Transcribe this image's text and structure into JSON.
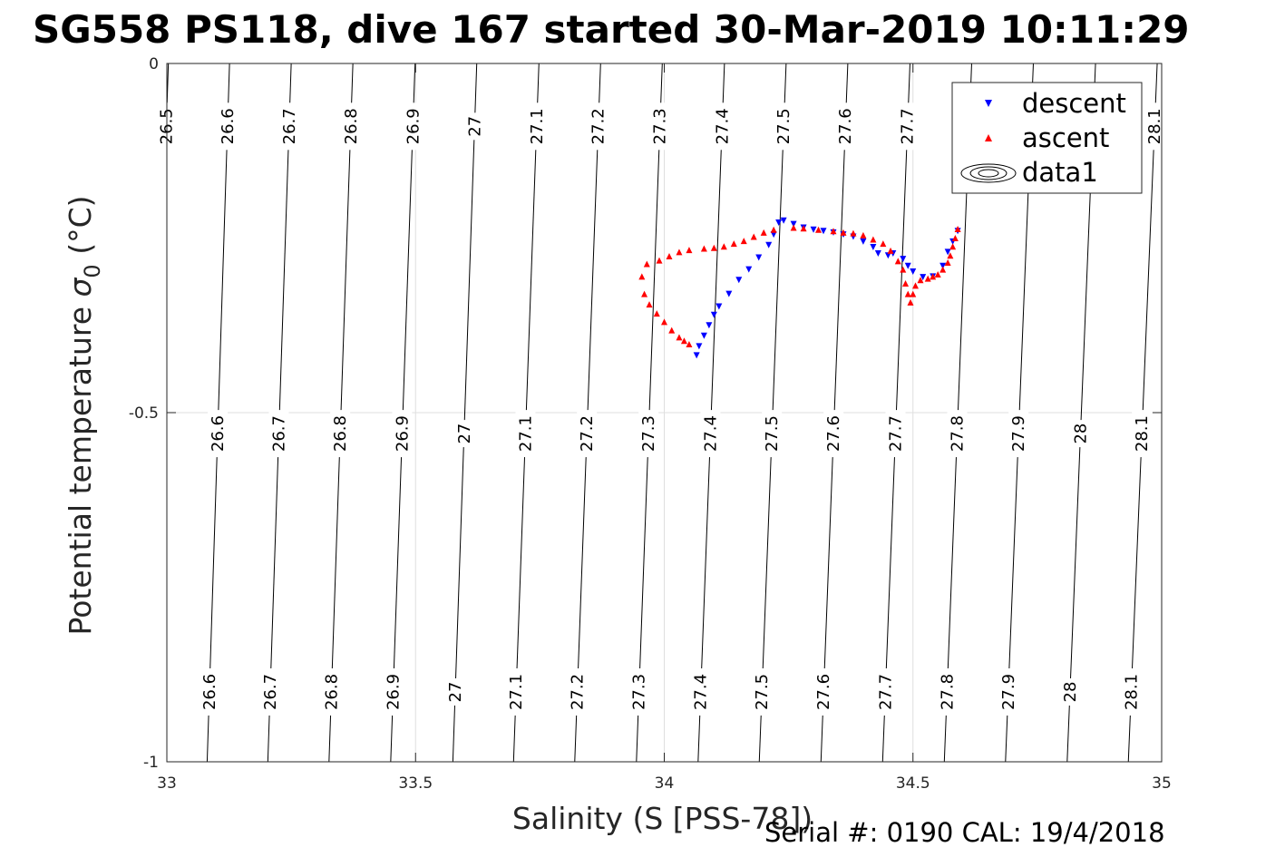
{
  "chart_data": {
    "type": "scatter",
    "title": "SG558 PS118, dive 167 started 30-Mar-2019 10:11:29",
    "xlabel": "Salinity (S [PSS-78])",
    "ylabel_main": "Potential temperature ",
    "ylabel_sigma": "σ",
    "ylabel_sub": "0",
    "ylabel_unit": " (°C)",
    "footer": "Serial #: 0190  CAL: 19/4/2018",
    "xlim": [
      33,
      35
    ],
    "ylim": [
      -1,
      0
    ],
    "x_ticks": [
      {
        "value": 33,
        "label": "33"
      },
      {
        "value": 33.5,
        "label": "33.5"
      },
      {
        "value": 34,
        "label": "34"
      },
      {
        "value": 34.5,
        "label": "34.5"
      },
      {
        "value": 35,
        "label": "35"
      }
    ],
    "y_ticks": [
      {
        "value": 0,
        "label": "0"
      },
      {
        "value": -0.5,
        "label": "-0.5"
      },
      {
        "value": -1,
        "label": "-1"
      }
    ],
    "grid": true,
    "legend": {
      "placement": "top-right",
      "entries": [
        {
          "label": "descent",
          "marker": "triangle-down",
          "color": "#0000ff"
        },
        {
          "label": "ascent",
          "marker": "triangle-up",
          "color": "#ff0000"
        },
        {
          "label": "data1",
          "marker": "contour",
          "color": "#000000"
        }
      ]
    },
    "isopycnals": [
      {
        "sigma": 26.5,
        "s_top": 33.003,
        "s_bottom": null
      },
      {
        "sigma": 26.6,
        "s_top": 33.126,
        "s_bottom": 33.081
      },
      {
        "sigma": 26.7,
        "s_top": 33.25,
        "s_bottom": 33.203
      },
      {
        "sigma": 26.8,
        "s_top": 33.374,
        "s_bottom": 33.326
      },
      {
        "sigma": 26.9,
        "s_top": 33.499,
        "s_bottom": 33.45
      },
      {
        "sigma": 27.0,
        "s_top": 33.623,
        "s_bottom": 33.575
      },
      {
        "sigma": 27.1,
        "s_top": 33.748,
        "s_bottom": 33.697
      },
      {
        "sigma": 27.2,
        "s_top": 33.872,
        "s_bottom": 33.82
      },
      {
        "sigma": 27.3,
        "s_top": 33.996,
        "s_bottom": 33.944
      },
      {
        "sigma": 27.4,
        "s_top": 34.121,
        "s_bottom": 34.068
      },
      {
        "sigma": 27.5,
        "s_top": 34.245,
        "s_bottom": 34.191
      },
      {
        "sigma": 27.6,
        "s_top": 34.369,
        "s_bottom": 34.315
      },
      {
        "sigma": 27.7,
        "s_top": 34.494,
        "s_bottom": 34.439
      },
      {
        "sigma": 27.8,
        "s_top": 34.618,
        "s_bottom": 34.563
      },
      {
        "sigma": 27.9,
        "s_top": 34.742,
        "s_bottom": 34.686
      },
      {
        "sigma": 28.0,
        "s_top": 34.867,
        "s_bottom": 34.81
      },
      {
        "sigma": 28.1,
        "s_top": 34.991,
        "s_bottom": 34.933
      }
    ],
    "iso_labels": {
      "top_row_t": -0.09,
      "top_row": [
        "26.5",
        "26.6",
        "26.7",
        "26.8",
        "26.9",
        "27",
        "27.1",
        "27.2",
        "27.3",
        "27.4",
        "27.5",
        "27.6",
        "27.7",
        "28.1"
      ],
      "mid_row_t": -0.53,
      "mid_row": [
        "26.6",
        "26.7",
        "26.8",
        "26.9",
        "27",
        "27.1",
        "27.2",
        "27.3",
        "27.4",
        "27.5",
        "27.6",
        "27.7",
        "27.8",
        "27.9",
        "28",
        "28.1"
      ],
      "bottom_row_t": -0.9,
      "bottom_row": [
        "26.6",
        "26.7",
        "26.8",
        "26.9",
        "27",
        "27.1",
        "27.2",
        "27.3",
        "27.4",
        "27.5",
        "27.6",
        "27.7",
        "27.8",
        "27.9",
        "28",
        "28.1"
      ]
    },
    "series": [
      {
        "name": "descent",
        "marker": "triangle-down",
        "color": "#0000ff",
        "points": [
          [
            34.24,
            -0.225
          ],
          [
            34.26,
            -0.23
          ],
          [
            34.28,
            -0.235
          ],
          [
            34.3,
            -0.238
          ],
          [
            34.32,
            -0.24
          ],
          [
            34.34,
            -0.242
          ],
          [
            34.36,
            -0.245
          ],
          [
            34.38,
            -0.248
          ],
          [
            34.4,
            -0.255
          ],
          [
            34.42,
            -0.263
          ],
          [
            34.43,
            -0.272
          ],
          [
            34.45,
            -0.275
          ],
          [
            34.46,
            -0.272
          ],
          [
            34.48,
            -0.28
          ],
          [
            34.49,
            -0.29
          ],
          [
            34.5,
            -0.298
          ],
          [
            34.52,
            -0.306
          ],
          [
            34.54,
            -0.305
          ],
          [
            34.56,
            -0.29
          ],
          [
            34.57,
            -0.27
          ],
          [
            34.58,
            -0.255
          ],
          [
            34.59,
            -0.24
          ],
          [
            34.23,
            -0.228
          ],
          [
            34.22,
            -0.245
          ],
          [
            34.21,
            -0.26
          ],
          [
            34.19,
            -0.278
          ],
          [
            34.17,
            -0.295
          ],
          [
            34.15,
            -0.31
          ],
          [
            34.13,
            -0.33
          ],
          [
            34.11,
            -0.348
          ],
          [
            34.1,
            -0.36
          ],
          [
            34.09,
            -0.375
          ],
          [
            34.08,
            -0.39
          ],
          [
            34.07,
            -0.405
          ],
          [
            34.065,
            -0.418
          ]
        ]
      },
      {
        "name": "ascent",
        "marker": "triangle-up",
        "color": "#ff0000",
        "points": [
          [
            34.59,
            -0.237
          ],
          [
            34.585,
            -0.25
          ],
          [
            34.58,
            -0.262
          ],
          [
            34.575,
            -0.275
          ],
          [
            34.57,
            -0.285
          ],
          [
            34.56,
            -0.295
          ],
          [
            34.55,
            -0.302
          ],
          [
            34.54,
            -0.305
          ],
          [
            34.53,
            -0.308
          ],
          [
            34.515,
            -0.31
          ],
          [
            34.505,
            -0.318
          ],
          [
            34.5,
            -0.33
          ],
          [
            34.495,
            -0.342
          ],
          [
            34.49,
            -0.33
          ],
          [
            34.485,
            -0.315
          ],
          [
            34.48,
            -0.295
          ],
          [
            34.47,
            -0.283
          ],
          [
            34.455,
            -0.268
          ],
          [
            34.44,
            -0.258
          ],
          [
            34.42,
            -0.252
          ],
          [
            34.4,
            -0.246
          ],
          [
            34.38,
            -0.243
          ],
          [
            34.36,
            -0.242
          ],
          [
            34.34,
            -0.24
          ],
          [
            34.31,
            -0.238
          ],
          [
            34.28,
            -0.236
          ],
          [
            34.26,
            -0.235
          ],
          [
            34.22,
            -0.238
          ],
          [
            34.2,
            -0.242
          ],
          [
            34.18,
            -0.248
          ],
          [
            34.16,
            -0.254
          ],
          [
            34.14,
            -0.258
          ],
          [
            34.12,
            -0.262
          ],
          [
            34.1,
            -0.264
          ],
          [
            34.08,
            -0.265
          ],
          [
            34.05,
            -0.267
          ],
          [
            34.03,
            -0.27
          ],
          [
            34.01,
            -0.276
          ],
          [
            33.99,
            -0.282
          ],
          [
            33.965,
            -0.287
          ],
          [
            33.955,
            -0.305
          ],
          [
            33.96,
            -0.33
          ],
          [
            33.97,
            -0.345
          ],
          [
            33.985,
            -0.358
          ],
          [
            34.0,
            -0.37
          ],
          [
            34.015,
            -0.382
          ],
          [
            34.03,
            -0.392
          ],
          [
            34.04,
            -0.397
          ],
          [
            34.05,
            -0.402
          ]
        ]
      }
    ]
  }
}
